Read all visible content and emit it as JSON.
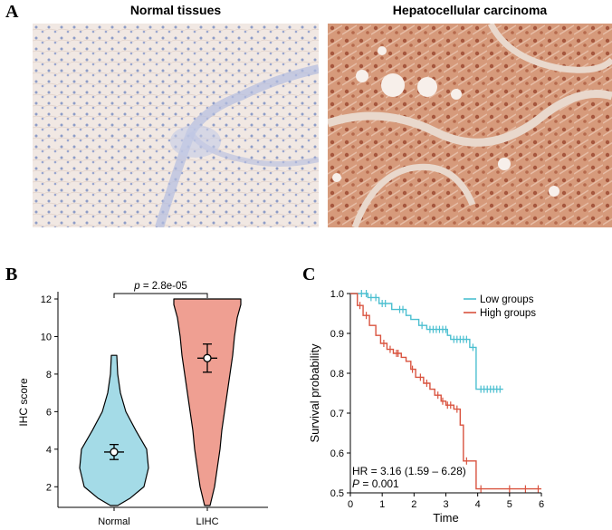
{
  "panel_a": {
    "letter": "A",
    "images": [
      {
        "title": "Normal tissues",
        "description": "IHC micrograph, pale blue-beige staining"
      },
      {
        "title": "Hepatocellular carcinoma",
        "description": "IHC micrograph, strong brown staining"
      }
    ]
  },
  "panel_b": {
    "letter": "B"
  },
  "panel_c": {
    "letter": "C"
  },
  "colors": {
    "normal_violin": "#a4dbe7",
    "lihc_violin": "#ef9f92",
    "low_group": "#4bbfd0",
    "high_group": "#d9533f"
  },
  "chart_data": [
    {
      "type": "violin",
      "ylabel": "IHC score",
      "xlabel": "",
      "categories": [
        "Normal",
        "LIHC"
      ],
      "ylim": [
        1,
        12
      ],
      "yticks": [
        "2",
        "4",
        "6",
        "8",
        "10",
        "12"
      ],
      "p_prefix": "p",
      "p_text": "= 2.8e-05",
      "series": [
        {
          "category": "Normal",
          "min": 1,
          "max": 9,
          "mean": 3.85,
          "ci": [
            3.45,
            4.25
          ]
        },
        {
          "category": "LIHC",
          "min": 1,
          "max": 12,
          "mean": 8.85,
          "ci": [
            8.1,
            9.6
          ]
        }
      ]
    },
    {
      "type": "line",
      "subtype": "kaplan-meier",
      "xlabel": "Time",
      "ylabel": "Survival probability",
      "xlim": [
        0,
        6
      ],
      "ylim": [
        0.5,
        1.0
      ],
      "xticks": [
        "0",
        "1",
        "2",
        "3",
        "4",
        "5",
        "6"
      ],
      "yticks": [
        "0.5",
        "0.6",
        "0.7",
        "0.8",
        "0.9",
        "1.0"
      ],
      "legend": [
        "Low groups",
        "High groups"
      ],
      "legend_position": "top-right",
      "hr_text": "HR = 3.16 (1.59 –  6.28)",
      "p_label": "P",
      "p_value": "= 0.001",
      "series": [
        {
          "name": "Low groups",
          "steps": [
            [
              0,
              1.0
            ],
            [
              0.55,
              0.99
            ],
            [
              0.9,
              0.975
            ],
            [
              1.3,
              0.96
            ],
            [
              1.75,
              0.945
            ],
            [
              1.9,
              0.935
            ],
            [
              2.15,
              0.92
            ],
            [
              2.4,
              0.91
            ],
            [
              3.05,
              0.895
            ],
            [
              3.15,
              0.885
            ],
            [
              3.75,
              0.865
            ],
            [
              3.95,
              0.76
            ],
            [
              4.8,
              0.76
            ]
          ]
        },
        {
          "name": "High groups",
          "steps": [
            [
              0,
              1.0
            ],
            [
              0.22,
              0.97
            ],
            [
              0.4,
              0.945
            ],
            [
              0.6,
              0.92
            ],
            [
              0.8,
              0.895
            ],
            [
              0.95,
              0.875
            ],
            [
              1.15,
              0.86
            ],
            [
              1.35,
              0.85
            ],
            [
              1.6,
              0.84
            ],
            [
              1.75,
              0.83
            ],
            [
              1.9,
              0.81
            ],
            [
              2.05,
              0.79
            ],
            [
              2.3,
              0.775
            ],
            [
              2.5,
              0.76
            ],
            [
              2.65,
              0.745
            ],
            [
              2.85,
              0.73
            ],
            [
              3.0,
              0.72
            ],
            [
              3.25,
              0.71
            ],
            [
              3.45,
              0.67
            ],
            [
              3.55,
              0.58
            ],
            [
              3.95,
              0.51
            ],
            [
              6.0,
              0.51
            ]
          ]
        }
      ]
    }
  ]
}
